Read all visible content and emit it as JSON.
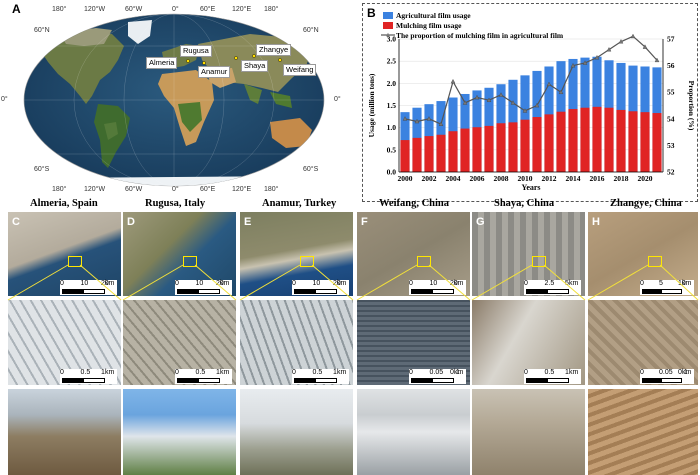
{
  "panel_a": {
    "letter": "A",
    "lon_labels_top": [
      "180°",
      "120°W",
      "60°W",
      "0°",
      "60°E",
      "120°E",
      "180°"
    ],
    "lon_labels_bottom": [
      "180°",
      "120°W",
      "60°W",
      "0°",
      "60°E",
      "120°E",
      "180°"
    ],
    "lat_labels_left": [
      "60°N",
      "0°",
      "60°S"
    ],
    "lat_labels_right": [
      "60°N",
      "0°",
      "60°S"
    ],
    "cities": [
      "Almeria",
      "Rugusa",
      "Anamur",
      "Zhangye",
      "Shaya",
      "Weifang"
    ]
  },
  "panel_b": {
    "letter": "B"
  },
  "chart_data": {
    "type": "bar",
    "categories": [
      "2000",
      "2001",
      "2002",
      "2003",
      "2004",
      "2005",
      "2006",
      "2007",
      "2008",
      "2009",
      "2010",
      "2011",
      "2012",
      "2013",
      "2014",
      "2015",
      "2016",
      "2017",
      "2018",
      "2019",
      "2020",
      "2021"
    ],
    "x_tick_labels": [
      "2000",
      "2002",
      "2004",
      "2006",
      "2008",
      "2010",
      "2012",
      "2014",
      "2016",
      "2018",
      "2020"
    ],
    "series": [
      {
        "name": "Agricultural film usage",
        "kind": "bar",
        "axis": "left",
        "values": [
          1.35,
          1.45,
          1.53,
          1.6,
          1.68,
          1.76,
          1.84,
          1.9,
          1.98,
          2.08,
          2.18,
          2.28,
          2.38,
          2.5,
          2.55,
          2.58,
          2.6,
          2.52,
          2.46,
          2.4,
          2.38,
          2.36
        ]
      },
      {
        "name": "Mulching film usage",
        "kind": "bar",
        "axis": "left",
        "values": [
          0.72,
          0.77,
          0.81,
          0.84,
          0.92,
          0.98,
          1.01,
          1.04,
          1.1,
          1.12,
          1.18,
          1.24,
          1.3,
          1.36,
          1.42,
          1.45,
          1.47,
          1.45,
          1.4,
          1.37,
          1.35,
          1.33
        ]
      },
      {
        "name": "The proportion of mulching film in agricultural film",
        "kind": "line",
        "axis": "right",
        "values": [
          54.0,
          53.9,
          54.0,
          53.8,
          55.4,
          54.6,
          54.8,
          54.7,
          54.9,
          54.6,
          54.3,
          54.5,
          55.3,
          55.0,
          56.0,
          56.1,
          56.3,
          56.6,
          56.9,
          57.1,
          56.7,
          56.2
        ]
      }
    ],
    "xlabel": "Years",
    "ylabel_left": "Usage (million tons)",
    "ylabel_right": "Proportion (%)",
    "ylim_left": [
      0,
      3.0
    ],
    "ylim_right": [
      52,
      57
    ],
    "yticks_left": [
      "0.0",
      "0.5",
      "1.0",
      "1.5",
      "2.0",
      "2.5",
      "3.0"
    ],
    "yticks_right": [
      "52",
      "53",
      "54",
      "55",
      "56",
      "57"
    ],
    "legend_placement": "top-left",
    "colors": {
      "agricultural": "#3b82e0",
      "mulching": "#e02424",
      "proportion_line": "#555555"
    }
  },
  "panels": [
    {
      "letter": "C",
      "title": "Almeria, Spain",
      "scale_top": [
        "0",
        "10",
        "20",
        "km"
      ],
      "scale_mid": [
        "0",
        "0.5",
        "1",
        "km"
      ]
    },
    {
      "letter": "D",
      "title": "Rugusa, Italy",
      "scale_top": [
        "0",
        "10",
        "20",
        "km"
      ],
      "scale_mid": [
        "0",
        "0.5",
        "1",
        "km"
      ]
    },
    {
      "letter": "E",
      "title": "Anamur, Turkey",
      "scale_top": [
        "0",
        "10",
        "20",
        "km"
      ],
      "scale_mid": [
        "0",
        "0.5",
        "1",
        "km"
      ]
    },
    {
      "letter": "F",
      "title": "Weifang, China",
      "scale_top": [
        "0",
        "10",
        "20",
        "km"
      ],
      "scale_mid": [
        "0",
        "0.05",
        "0.1",
        "km"
      ]
    },
    {
      "letter": "G",
      "title": "Shaya, China",
      "scale_top": [
        "0",
        "2.5",
        "5",
        "km"
      ],
      "scale_mid": [
        "0",
        "0.5",
        "1",
        "km"
      ]
    },
    {
      "letter": "H",
      "title": "Zhangye, China",
      "scale_top": [
        "0",
        "5",
        "10",
        "km"
      ],
      "scale_mid": [
        "0",
        "0.05",
        "0.1",
        "km"
      ]
    }
  ]
}
